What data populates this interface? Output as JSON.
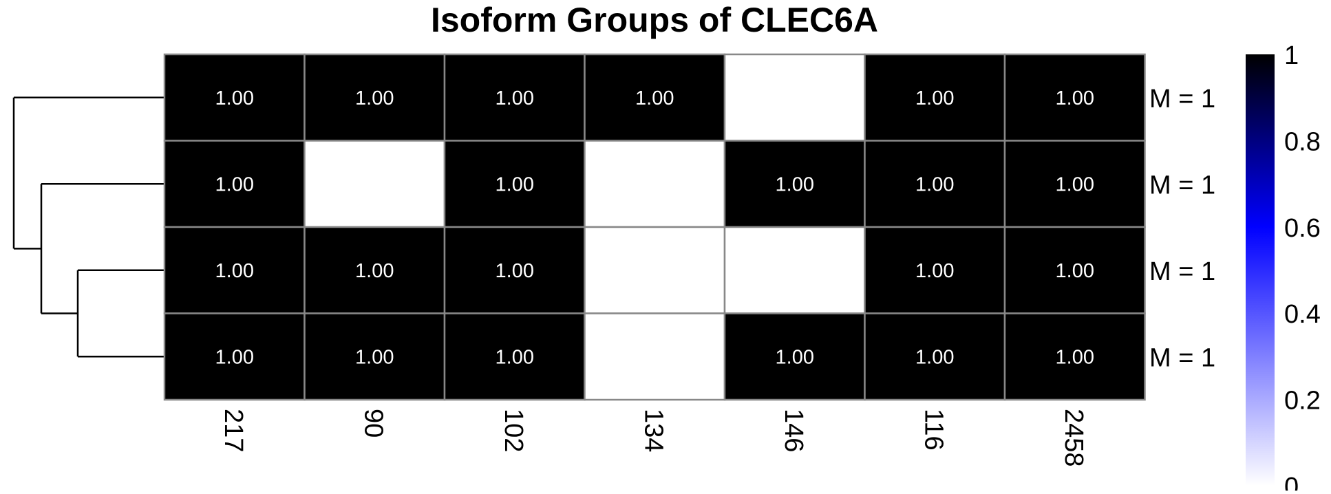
{
  "chart_data": {
    "type": "heatmap",
    "title": "Isoform Groups of CLEC6A",
    "columns": [
      "217",
      "90",
      "102",
      "134",
      "146",
      "116",
      "2458"
    ],
    "row_labels": [
      "M = 1",
      "M = 1",
      "M = 1",
      "M = 1"
    ],
    "values": [
      [
        1,
        1,
        1,
        1,
        null,
        1,
        1
      ],
      [
        1,
        null,
        1,
        null,
        1,
        1,
        1
      ],
      [
        1,
        1,
        1,
        null,
        null,
        1,
        1
      ],
      [
        1,
        1,
        1,
        null,
        1,
        1,
        1
      ]
    ],
    "cell_labels": [
      [
        "1.00",
        "1.00",
        "1.00",
        "1.00",
        "",
        "1.00",
        "1.00"
      ],
      [
        "1.00",
        "",
        "1.00",
        "",
        "1.00",
        "1.00",
        "1.00"
      ],
      [
        "1.00",
        "1.00",
        "1.00",
        "",
        "",
        "1.00",
        "1.00"
      ],
      [
        "1.00",
        "1.00",
        "1.00",
        "",
        "1.00",
        "1.00",
        "1.00"
      ]
    ],
    "row_dendrogram": "((row1), (row2, (row3, row4)))",
    "color_scale": {
      "min": 0,
      "max": 1,
      "ticks": [
        "0",
        "0.2",
        "0.4",
        "0.6",
        "0.8",
        "1"
      ],
      "colors": [
        "#ffffff",
        "#0000ff",
        "#000000"
      ]
    },
    "empty_cell_color": "#ffffff",
    "grid_color": "#888888"
  }
}
